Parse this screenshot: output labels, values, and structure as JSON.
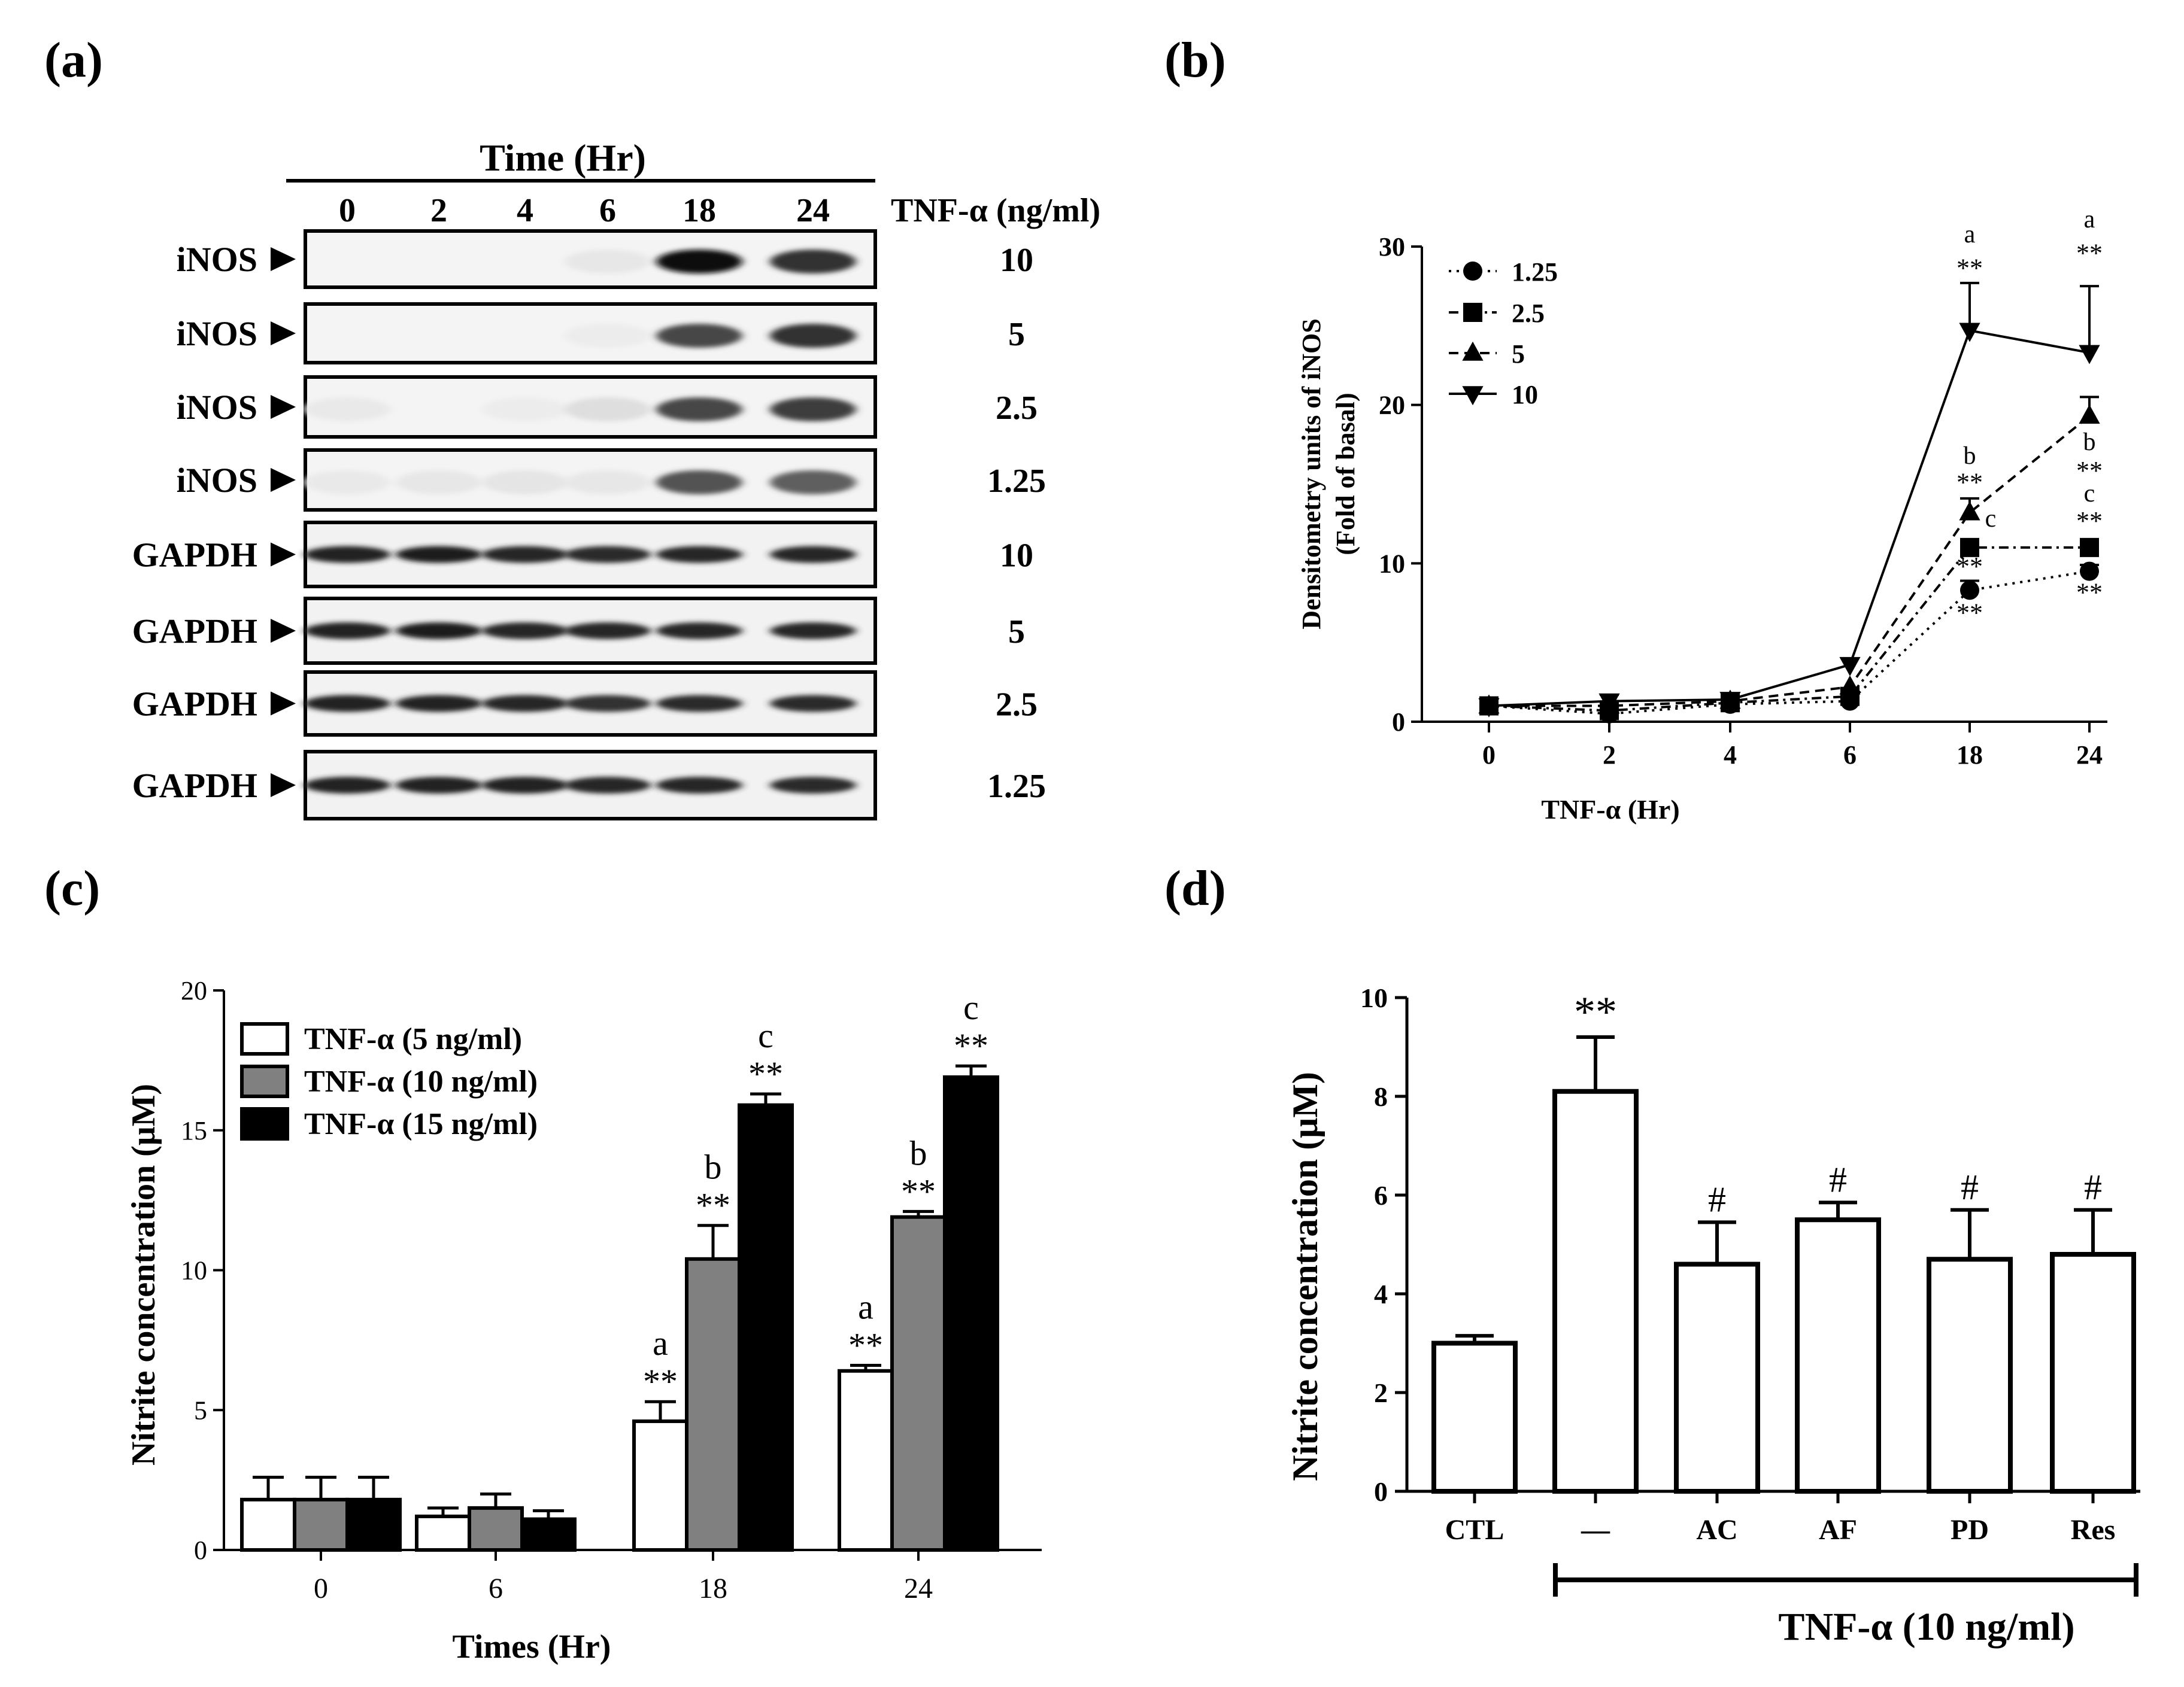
{
  "panel_labels": [
    "(a)",
    "(b)",
    "(c)",
    "(d)"
  ],
  "blot": {
    "time_title": "Time (Hr)",
    "times": [
      "0",
      "2",
      "4",
      "6",
      "18",
      "24"
    ],
    "conc_header": "TNF-α (ng/ml)",
    "rows": [
      {
        "label": "iNOS",
        "conc": "10",
        "intensity": [
          0,
          0,
          0,
          0.04,
          1.0,
          0.85
        ]
      },
      {
        "label": "iNOS",
        "conc": "5",
        "intensity": [
          0,
          0,
          0,
          0.02,
          0.75,
          0.85
        ]
      },
      {
        "label": "iNOS",
        "conc": "2.5",
        "intensity": [
          0.03,
          0,
          0.02,
          0.08,
          0.75,
          0.8
        ]
      },
      {
        "label": "iNOS",
        "conc": "1.25",
        "intensity": [
          0.03,
          0.04,
          0.05,
          0.04,
          0.7,
          0.65
        ]
      },
      {
        "label": "GAPDH",
        "conc": "10",
        "intensity": [
          0.92,
          0.95,
          0.9,
          0.88,
          0.9,
          0.9
        ]
      },
      {
        "label": "GAPDH",
        "conc": "5",
        "intensity": [
          0.92,
          0.93,
          0.9,
          0.9,
          0.9,
          0.9
        ]
      },
      {
        "label": "GAPDH",
        "conc": "2.5",
        "intensity": [
          0.92,
          0.92,
          0.9,
          0.85,
          0.88,
          0.88
        ]
      },
      {
        "label": "GAPDH",
        "conc": "1.25",
        "intensity": [
          0.92,
          0.92,
          0.92,
          0.9,
          0.9,
          0.88
        ]
      }
    ]
  },
  "chart_data": [
    {
      "id": "b",
      "type": "line",
      "xlabel": "TNF-α (Hr)",
      "ylabel": [
        "Densitometry units of iNOS",
        "(Fold of basal)"
      ],
      "categories": [
        "0",
        "2",
        "4",
        "6",
        "18",
        "24"
      ],
      "ylim": [
        0,
        30
      ],
      "yticks": [
        0,
        10,
        20,
        30
      ],
      "series": [
        {
          "name": "1.25",
          "marker": "circle",
          "dash": "dotted",
          "values": [
            1,
            0.5,
            1.1,
            1.3,
            8.3,
            9.5
          ],
          "err": [
            0,
            0,
            0,
            0,
            0.6,
            0.4
          ],
          "annotations": [
            null,
            null,
            null,
            null,
            "**",
            "**"
          ]
        },
        {
          "name": "2.5",
          "marker": "square",
          "dash": "dashdot",
          "values": [
            1,
            0.7,
            1.2,
            1.6,
            11,
            11
          ],
          "err": [
            0,
            0,
            0,
            0,
            0.5,
            0.4
          ],
          "annotations": [
            null,
            null,
            null,
            null,
            "**",
            "**"
          ],
          "letters": [
            null,
            null,
            null,
            null,
            "c",
            "c"
          ]
        },
        {
          "name": "5",
          "marker": "triangle-up",
          "dash": "dashed",
          "values": [
            1,
            1,
            1.3,
            2.2,
            13.2,
            19.3
          ],
          "err": [
            0,
            0,
            0,
            0,
            0.9,
            1.2
          ],
          "annotations": [
            null,
            null,
            null,
            null,
            "**",
            "**"
          ],
          "letters": [
            null,
            null,
            null,
            null,
            "b",
            "b"
          ]
        },
        {
          "name": "10",
          "marker": "triangle-down",
          "dash": "solid",
          "values": [
            1,
            1.3,
            1.4,
            3.6,
            24.7,
            23.3
          ],
          "err": [
            0,
            0.4,
            0,
            0,
            3,
            4.2
          ],
          "annotations": [
            null,
            null,
            null,
            null,
            "**",
            "**"
          ],
          "letters": [
            null,
            null,
            null,
            null,
            "a",
            "a"
          ]
        }
      ]
    },
    {
      "id": "c",
      "type": "bar",
      "xlabel": "Times (Hr)",
      "ylabel": "Nitrite concentration (μM)",
      "categories": [
        "0",
        "6",
        "18",
        "24"
      ],
      "ylim": [
        0,
        20
      ],
      "yticks": [
        0,
        5,
        10,
        15,
        20
      ],
      "series": [
        {
          "name": "TNF-α (5 ng/ml)",
          "color": "#ffffff",
          "values": [
            1.8,
            1.2,
            4.6,
            6.4
          ],
          "err": [
            0.8,
            0.3,
            0.7,
            0.2
          ],
          "annotations": [
            null,
            null,
            "**",
            "**"
          ],
          "letters": [
            null,
            null,
            "a",
            "a"
          ]
        },
        {
          "name": "TNF-α (10 ng/ml)",
          "color": "#808080",
          "values": [
            1.8,
            1.5,
            10.4,
            11.9
          ],
          "err": [
            0.8,
            0.5,
            1.2,
            0.2
          ],
          "annotations": [
            null,
            null,
            "**",
            "**"
          ],
          "letters": [
            null,
            null,
            "b",
            "b"
          ]
        },
        {
          "name": "TNF-α (15 ng/ml)",
          "color": "#000000",
          "values": [
            1.8,
            1.1,
            15.9,
            16.9
          ],
          "err": [
            0.8,
            0.3,
            0.4,
            0.4
          ],
          "annotations": [
            null,
            null,
            "**",
            "**"
          ],
          "letters": [
            null,
            null,
            "c",
            "c"
          ]
        }
      ]
    },
    {
      "id": "d",
      "type": "bar",
      "xlabel": "",
      "ylabel": "Nitrite concentration (μM)",
      "categories": [
        "CTL",
        "—",
        "AC",
        "AF",
        "PD",
        "Res"
      ],
      "ylim": [
        0,
        10
      ],
      "yticks": [
        0,
        2,
        4,
        6,
        8,
        10
      ],
      "values": [
        3.0,
        8.1,
        4.6,
        5.5,
        4.7,
        4.8
      ],
      "err": [
        0.15,
        1.1,
        0.85,
        0.35,
        1.0,
        0.9
      ],
      "annotations": [
        null,
        "**",
        "#",
        "#",
        "#",
        "#"
      ],
      "bracket_label": "TNF-α (10 ng/ml)"
    }
  ]
}
